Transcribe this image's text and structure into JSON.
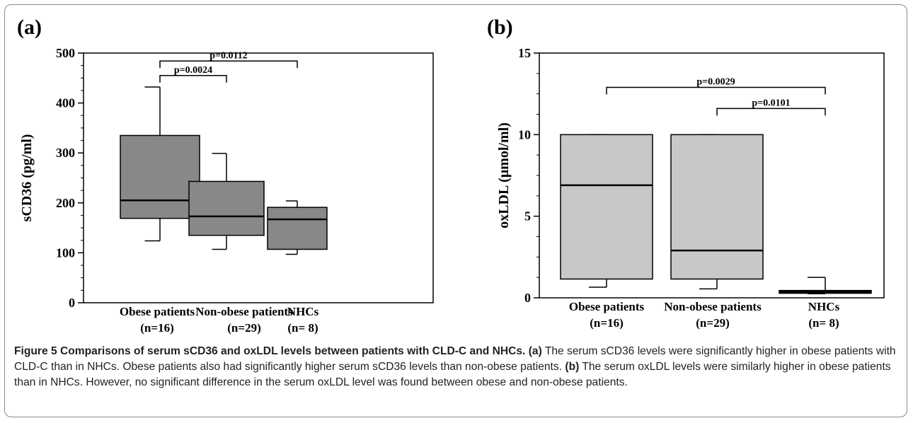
{
  "chart_data": [
    {
      "type": "box",
      "panel_label": "(a)",
      "ylabel": "sCD36 (pg/ml)",
      "ylim": [
        0,
        500
      ],
      "yticks": [
        0,
        100,
        200,
        300,
        400,
        500
      ],
      "categories": [
        {
          "name": "Obese patients",
          "n": "(n=16)"
        },
        {
          "name": "Non-obese patients",
          "n": "(n=29)"
        },
        {
          "name": "NHCs",
          "n": "(n= 8)"
        }
      ],
      "boxes": [
        {
          "min": 124,
          "q1": 169,
          "median": 205,
          "q3": 335,
          "max": 432
        },
        {
          "min": 107,
          "q1": 135,
          "median": 173,
          "q3": 243,
          "max": 299
        },
        {
          "min": 97,
          "q1": 107,
          "median": 167,
          "q3": 191,
          "max": 204
        }
      ],
      "comparisons": [
        {
          "from": 0,
          "to": 1,
          "label": "p=0.0024",
          "y": 455
        },
        {
          "from": 0,
          "to": 2,
          "label": "p=0.0112",
          "y": 484
        }
      ],
      "box_color": "#888888"
    },
    {
      "type": "box",
      "panel_label": "(b)",
      "ylabel": "oxLDL (μmol/ml)",
      "ylim": [
        0,
        15
      ],
      "yticks": [
        0,
        5,
        10,
        15
      ],
      "categories": [
        {
          "name": "Obese patients",
          "n": "(n=16)"
        },
        {
          "name": "Non-obese patients",
          "n": "(n=29)"
        },
        {
          "name": "NHCs",
          "n": "(n= 8)"
        }
      ],
      "boxes": [
        {
          "min": 0.65,
          "q1": 1.15,
          "median": 6.9,
          "q3": 10.0,
          "max": 10.0
        },
        {
          "min": 0.55,
          "q1": 1.15,
          "median": 2.9,
          "q3": 10.0,
          "max": 10.0
        },
        {
          "min": 0.25,
          "q1": 0.3,
          "median": 0.38,
          "q3": 0.45,
          "max": 1.25
        }
      ],
      "comparisons": [
        {
          "from": 0,
          "to": 2,
          "label": "p=0.0029",
          "y": 12.9
        },
        {
          "from": 1,
          "to": 2,
          "label": "p=0.0101",
          "y": 11.6
        }
      ],
      "box_color": "#c8c8c8"
    }
  ],
  "caption": {
    "title": "Figure 5 Comparisons of serum sCD36 and oxLDL levels between patients with CLD-C and NHCs.",
    "a_label": "(a)",
    "a_text": " The serum sCD36 levels were significantly higher in obese patients with CLD-C than in NHCs. Obese patients also had significantly higher serum sCD36 levels than non-obese patients.",
    "b_label": "(b)",
    "b_text": " The serum oxLDL levels were similarly higher in obese patients than in NHCs. However, no significant difference in the serum oxLDL level was found between obese and non-obese patients."
  }
}
